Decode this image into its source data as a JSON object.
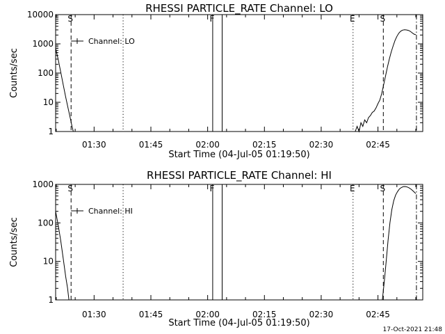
{
  "chart_data": [
    {
      "type": "line",
      "title": "RHESSI PARTICLE_RATE Channel: LO",
      "xlabel": "Start Time (04-Jul-05 01:19:50)",
      "ylabel": "Counts/sec",
      "yscale": "log",
      "ylim": [
        1,
        10000
      ],
      "xlim_minutes_since_start": [
        0,
        97
      ],
      "x_tick_labels": [
        "01:30",
        "01:45",
        "02:00",
        "02:15",
        "02:30",
        "02:45"
      ],
      "y_tick_labels": [
        "1",
        "10",
        "100",
        "1000",
        "10000"
      ],
      "legend": {
        "label": "Channel: LO",
        "placement": "top-left"
      },
      "markers": [
        {
          "label": "S",
          "time": "01:23:55",
          "style": "dashed"
        },
        {
          "label": "",
          "time": "01:37:40",
          "style": "dotted"
        },
        {
          "label": "F",
          "time": "02:01:20",
          "style": "solid"
        },
        {
          "label": "",
          "time": "02:03:50",
          "style": "solid"
        },
        {
          "label": "E",
          "time": "02:38:25",
          "style": "dotted"
        },
        {
          "label": "S",
          "time": "02:46:25",
          "style": "dashed"
        },
        {
          "label": "",
          "time": "02:55:10",
          "style": "dash-dot"
        }
      ],
      "series": [
        {
          "name": "Channel: LO",
          "segments": [
            {
              "x": [
                "01:19:50",
                "01:20:30",
                "01:21:10",
                "01:21:50",
                "01:22:30",
                "01:23:10",
                "01:23:40",
                "01:24:10",
                "01:24:30"
              ],
              "y": [
                700,
                300,
                110,
                40,
                15,
                6,
                3,
                1.5,
                1
              ]
            },
            {
              "x": [
                "02:39:00",
                "02:39:30",
                "02:40:00",
                "02:40:30",
                "02:41:00",
                "02:41:30",
                "02:42:00",
                "02:42:30",
                "02:43:00",
                "02:43:30",
                "02:44:00",
                "02:44:30",
                "02:45:00",
                "02:45:30",
                "02:46:00",
                "02:46:30",
                "02:47:00",
                "02:47:30",
                "02:48:00",
                "02:48:30",
                "02:49:00",
                "02:49:30",
                "02:50:00",
                "02:50:30",
                "02:51:00",
                "02:51:30",
                "02:52:00",
                "02:52:30",
                "02:53:00",
                "02:53:30",
                "02:54:00",
                "02:54:30",
                "02:55:00"
              ],
              "y": [
                1,
                1.5,
                1,
                2,
                1.5,
                2.5,
                2,
                3,
                3.5,
                4.5,
                5,
                6.5,
                9,
                12,
                20,
                40,
                80,
                160,
                300,
                520,
                850,
                1300,
                1800,
                2300,
                2700,
                2950,
                3050,
                3000,
                2900,
                2700,
                2400,
                2150,
                2050
              ]
            }
          ]
        }
      ]
    },
    {
      "type": "line",
      "title": "RHESSI PARTICLE_RATE Channel: HI",
      "xlabel": "Start Time (04-Jul-05 01:19:50)",
      "ylabel": "Counts/sec",
      "yscale": "log",
      "ylim": [
        1,
        1000
      ],
      "xlim_minutes_since_start": [
        0,
        97
      ],
      "x_tick_labels": [
        "01:30",
        "01:45",
        "02:00",
        "02:15",
        "02:30",
        "02:45"
      ],
      "y_tick_labels": [
        "1",
        "10",
        "100",
        "1000"
      ],
      "legend": {
        "label": "Channel: HI",
        "placement": "top-left"
      },
      "markers": [
        {
          "label": "S",
          "time": "01:23:55",
          "style": "dashed"
        },
        {
          "label": "",
          "time": "01:37:40",
          "style": "dotted"
        },
        {
          "label": "F",
          "time": "02:01:20",
          "style": "solid"
        },
        {
          "label": "",
          "time": "02:03:50",
          "style": "solid"
        },
        {
          "label": "E",
          "time": "02:38:25",
          "style": "dotted"
        },
        {
          "label": "S",
          "time": "02:46:25",
          "style": "dashed"
        },
        {
          "label": "",
          "time": "02:55:10",
          "style": "dash-dot"
        }
      ],
      "series": [
        {
          "name": "Channel: HI",
          "segments": [
            {
              "x": [
                "01:19:50",
                "01:20:30",
                "01:21:10",
                "01:21:50",
                "01:22:30",
                "01:23:00",
                "01:23:20"
              ],
              "y": [
                200,
                90,
                35,
                12,
                4,
                2,
                1
              ]
            },
            {
              "x": [
                "02:46:10",
                "02:46:40",
                "02:47:10",
                "02:47:40",
                "02:48:10",
                "02:48:40",
                "02:49:10",
                "02:49:40",
                "02:50:10",
                "02:50:40",
                "02:51:10",
                "02:51:40",
                "02:52:10",
                "02:52:40",
                "02:53:10",
                "02:53:40",
                "02:54:10",
                "02:54:40",
                "02:55:00"
              ],
              "y": [
                1,
                3,
                10,
                35,
                100,
                220,
                380,
                530,
                650,
                760,
                830,
                870,
                880,
                860,
                820,
                760,
                690,
                620,
                580
              ]
            }
          ]
        }
      ]
    }
  ],
  "footer": {
    "timestamp": "17-Oct-2021 21:48"
  }
}
